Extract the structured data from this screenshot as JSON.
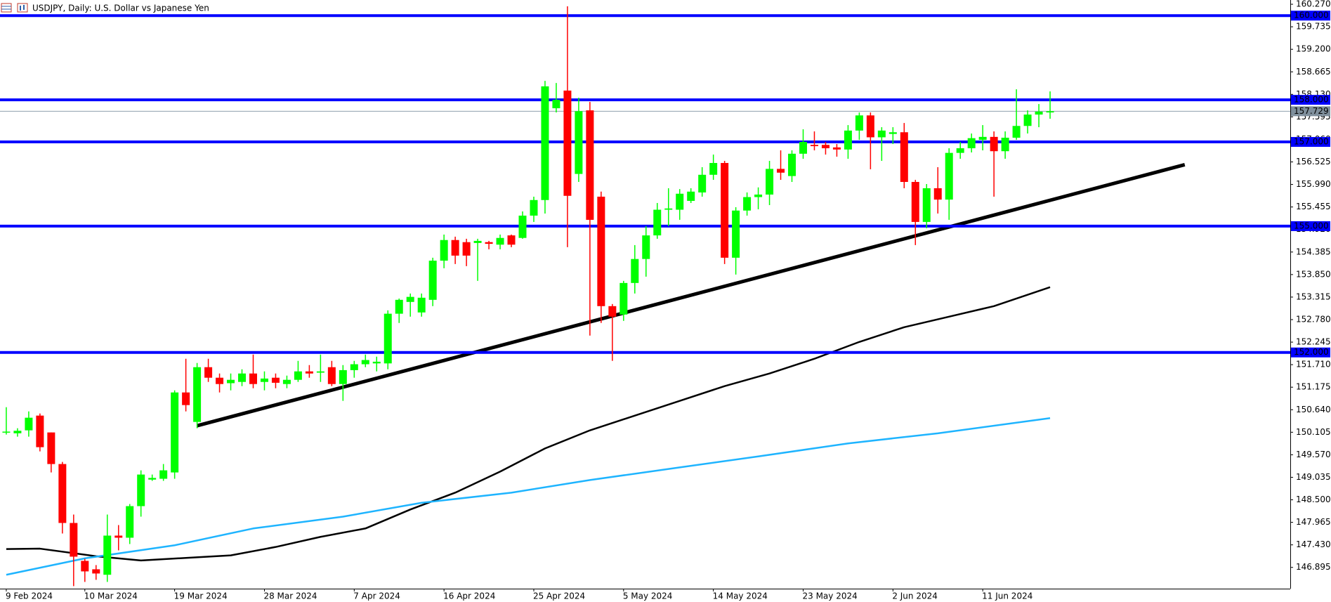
{
  "chart_data": {
    "type": "candlestick",
    "title": "USDJPY, Daily:  U.S. Dollar vs Japanese Yen",
    "categories": [
      "9 Feb 2024",
      null,
      null,
      null,
      null,
      null,
      null,
      "10 Mar 2024",
      null,
      null,
      null,
      null,
      null,
      null,
      null,
      "19 Mar 2024",
      null,
      null,
      null,
      null,
      null,
      null,
      null,
      "28 Mar 2024",
      null,
      null,
      null,
      null,
      null,
      null,
      null,
      "7 Apr 2024",
      null,
      null,
      null,
      null,
      null,
      null,
      null,
      "16 Apr 2024",
      null,
      null,
      null,
      null,
      null,
      null,
      null,
      "25 Apr 2024",
      null,
      null,
      null,
      null,
      null,
      null,
      null,
      "5 May 2024",
      null,
      null,
      null,
      null,
      null,
      null,
      null,
      "14 May 2024",
      null,
      null,
      null,
      null,
      null,
      null,
      null,
      "23 May 2024",
      null,
      null,
      null,
      null,
      null,
      null,
      null,
      "2 Jun 2024",
      null,
      null,
      null,
      null,
      null,
      null,
      null,
      "11 Jun 2024",
      null,
      null,
      null,
      null,
      null,
      null
    ],
    "open": [
      150.1,
      150.08,
      150.15,
      150.5,
      150.1,
      149.35,
      147.95,
      147.05,
      146.85,
      146.72,
      147.65,
      147.6,
      148.35,
      148.98,
      149.0,
      149.15,
      151.05,
      150.35,
      151.65,
      151.4,
      151.27,
      151.3,
      151.5,
      151.3,
      151.4,
      151.25,
      151.35,
      151.55,
      151.52,
      151.65,
      151.25,
      151.58,
      151.72,
      151.74,
      151.74,
      152.92,
      153.2,
      152.95,
      153.25,
      154.18,
      154.67,
      154.62,
      154.6,
      154.62,
      154.56,
      154.78,
      154.72,
      155.25,
      155.62,
      157.8,
      158.22,
      156.24,
      157.75,
      155.7,
      153.1,
      152.9,
      153.65,
      154.22,
      154.78,
      155.39,
      155.39,
      155.6,
      155.8,
      156.22,
      156.5,
      154.25,
      155.37,
      155.69,
      155.75,
      156.36,
      156.19,
      156.72,
      156.93,
      156.93,
      156.87,
      156.82,
      157.27,
      157.63,
      157.11,
      157.19,
      157.23,
      156.05,
      155.1,
      155.9,
      155.63,
      156.74,
      156.85,
      157.05,
      157.12,
      156.78,
      157.1,
      157.38,
      157.65,
      157.7
    ],
    "high": [
      150.7,
      150.2,
      150.6,
      150.55,
      150.1,
      149.4,
      148.15,
      147.1,
      146.95,
      148.15,
      147.9,
      148.4,
      149.2,
      149.1,
      149.35,
      151.1,
      151.85,
      151.75,
      151.85,
      151.5,
      151.5,
      151.6,
      151.95,
      151.55,
      151.5,
      151.45,
      151.8,
      151.7,
      151.95,
      151.8,
      151.7,
      151.8,
      151.95,
      151.9,
      153.0,
      153.28,
      153.4,
      153.4,
      154.25,
      154.8,
      154.75,
      154.7,
      154.7,
      154.65,
      154.8,
      154.8,
      155.35,
      155.7,
      158.45,
      158.4,
      160.22,
      158.05,
      157.95,
      155.82,
      153.15,
      153.7,
      154.55,
      155.0,
      155.55,
      155.9,
      155.88,
      155.9,
      156.4,
      156.7,
      156.55,
      155.45,
      155.8,
      155.92,
      156.55,
      156.8,
      156.8,
      157.3,
      157.25,
      157.0,
      156.95,
      157.4,
      157.7,
      157.7,
      157.35,
      157.35,
      157.45,
      156.1,
      156.0,
      156.4,
      156.85,
      157.0,
      157.2,
      157.4,
      157.25,
      157.25,
      158.25,
      157.75,
      157.9,
      158.2
    ],
    "low": [
      150.05,
      150.0,
      150.0,
      149.65,
      149.15,
      147.7,
      146.45,
      146.55,
      146.6,
      146.55,
      147.3,
      147.45,
      148.1,
      148.95,
      148.95,
      149.0,
      150.6,
      150.2,
      151.3,
      151.05,
      151.1,
      151.2,
      151.15,
      151.1,
      151.15,
      151.15,
      151.3,
      151.4,
      151.3,
      151.2,
      150.85,
      151.4,
      151.65,
      151.55,
      151.6,
      152.7,
      152.85,
      152.85,
      153.1,
      154.0,
      154.1,
      154.05,
      153.7,
      154.45,
      154.45,
      154.5,
      154.7,
      155.1,
      155.3,
      157.7,
      154.5,
      156.05,
      152.4,
      152.7,
      151.8,
      152.75,
      153.4,
      153.8,
      154.7,
      155.0,
      155.15,
      155.55,
      155.7,
      156.1,
      154.1,
      153.85,
      155.25,
      155.4,
      155.5,
      156.1,
      156.05,
      156.6,
      156.8,
      156.7,
      156.65,
      156.6,
      157.05,
      156.35,
      156.55,
      156.95,
      155.9,
      154.55,
      154.95,
      155.3,
      155.15,
      156.6,
      156.75,
      156.8,
      155.7,
      156.6,
      157.05,
      157.2,
      157.35,
      157.55
    ],
    "close": [
      150.12,
      150.14,
      150.45,
      149.75,
      149.35,
      147.95,
      147.15,
      146.8,
      146.75,
      147.65,
      147.6,
      148.35,
      149.1,
      149.02,
      149.2,
      151.05,
      150.75,
      151.65,
      151.4,
      151.25,
      151.35,
      151.5,
      151.25,
      151.38,
      151.28,
      151.35,
      151.55,
      151.5,
      151.55,
      151.25,
      151.58,
      151.72,
      151.82,
      151.78,
      152.92,
      153.25,
      153.32,
      153.3,
      154.18,
      154.67,
      154.3,
      154.3,
      154.65,
      154.58,
      154.72,
      154.56,
      155.25,
      155.62,
      158.32,
      158.0,
      155.72,
      157.73,
      155.15,
      153.1,
      152.85,
      153.65,
      154.22,
      154.78,
      155.39,
      155.42,
      155.77,
      155.82,
      156.22,
      156.5,
      154.25,
      155.37,
      155.69,
      155.75,
      156.36,
      156.27,
      156.72,
      157.0,
      156.9,
      156.85,
      156.82,
      157.27,
      157.63,
      157.11,
      157.27,
      157.23,
      156.05,
      155.1,
      155.9,
      155.63,
      156.74,
      156.85,
      157.09,
      157.12,
      156.78,
      157.1,
      157.38,
      157.65,
      157.72,
      157.73
    ],
    "up_color": "#00ff00",
    "down_color": "#ff0000",
    "indicators": [
      {
        "color": "#000000",
        "x": [
          0,
          3,
          8,
          12,
          16,
          20,
          24,
          28,
          32,
          36,
          40,
          44,
          48,
          52,
          56,
          60,
          64,
          68,
          72,
          76,
          80,
          84,
          88,
          93
        ],
        "values": [
          147.33,
          147.34,
          147.16,
          147.06,
          147.12,
          147.18,
          147.38,
          147.62,
          147.82,
          148.27,
          148.67,
          149.17,
          149.72,
          150.15,
          150.5,
          150.85,
          151.2,
          151.5,
          151.85,
          152.25,
          152.6,
          152.85,
          153.1,
          153.55
        ]
      },
      {
        "color": "#1eb4ff",
        "x": [
          0,
          7,
          15,
          22,
          30,
          37,
          45,
          52,
          60,
          67,
          75,
          83,
          93
        ],
        "values": [
          146.72,
          147.11,
          147.42,
          147.82,
          148.1,
          148.43,
          148.67,
          148.97,
          149.27,
          149.53,
          149.84,
          150.08,
          150.44
        ]
      }
    ],
    "trendline": {
      "color": "#000000",
      "x": [
        17,
        105
      ],
      "values": [
        150.26,
        156.46
      ]
    },
    "levels": [
      {
        "value": 160,
        "label": "160.000"
      },
      {
        "value": 158,
        "label": "158.000"
      },
      {
        "value": 157,
        "label": "157.000"
      },
      {
        "value": 155,
        "label": "155.000"
      },
      {
        "value": 152,
        "label": "152.000"
      }
    ],
    "level_color": "#0000ff",
    "current_price": {
      "value": 157.729,
      "label": "157.729"
    },
    "xlim": [
      -0.56,
      114.4
    ],
    "ylim": [
      146.39,
      160.371
    ],
    "yticks": [
      {
        "value": 160.27,
        "label": "160.270"
      },
      {
        "value": 159.735,
        "label": "159.735"
      },
      {
        "value": 159.2,
        "label": "159.200"
      },
      {
        "value": 158.665,
        "label": "158.665"
      },
      {
        "value": 158.13,
        "label": "158.130"
      },
      {
        "value": 157.595,
        "label": "157.595"
      },
      {
        "value": 157.06,
        "label": "157.060"
      },
      {
        "value": 156.525,
        "label": "156.525"
      },
      {
        "value": 155.99,
        "label": "155.990"
      },
      {
        "value": 155.455,
        "label": "155.455"
      },
      {
        "value": 154.92,
        "label": "154.920"
      },
      {
        "value": 154.385,
        "label": "154.385"
      },
      {
        "value": 153.85,
        "label": "153.850"
      },
      {
        "value": 153.315,
        "label": "153.315"
      },
      {
        "value": 152.78,
        "label": "152.780"
      },
      {
        "value": 152.245,
        "label": "152.245"
      },
      {
        "value": 151.71,
        "label": "151.710"
      },
      {
        "value": 151.175,
        "label": "151.175"
      },
      {
        "value": 150.64,
        "label": "150.640"
      },
      {
        "value": 150.105,
        "label": "150.105"
      },
      {
        "value": 149.57,
        "label": "149.570"
      },
      {
        "value": 149.035,
        "label": "149.035"
      },
      {
        "value": 148.5,
        "label": "148.500"
      },
      {
        "value": 147.965,
        "label": "147.965"
      },
      {
        "value": 147.43,
        "label": "147.430"
      },
      {
        "value": 146.895,
        "label": "146.895"
      }
    ]
  }
}
